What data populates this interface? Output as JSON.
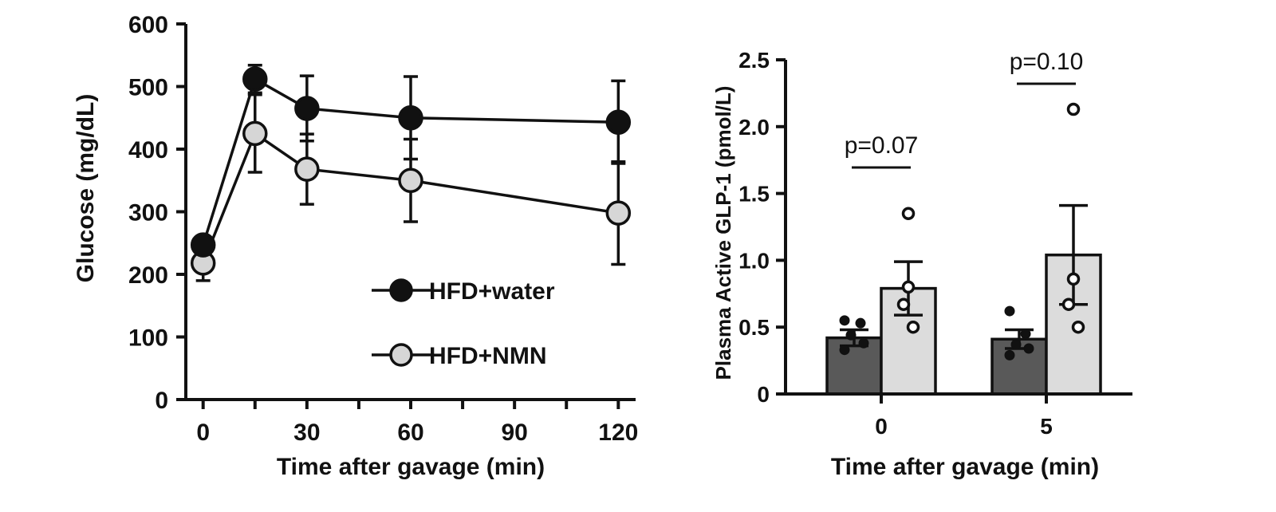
{
  "colors": {
    "axis": "#111111",
    "hfd_water": "#111111",
    "hfd_nmn_fill": "#d6d6d6",
    "bar_water": "#595959",
    "bar_nmn": "#dcdcdc"
  },
  "chart_data": [
    {
      "type": "line",
      "title": "",
      "xlabel": "Time after gavage (min)",
      "ylabel": "Glucose (mg/dL)",
      "xlim": [
        -5,
        125
      ],
      "ylim": [
        0,
        600
      ],
      "x_ticks": [
        0,
        15,
        30,
        45,
        60,
        75,
        90,
        105,
        120
      ],
      "x_tick_labels": [
        "0",
        "",
        "30",
        "",
        "60",
        "",
        "90",
        "",
        "120"
      ],
      "y_ticks": [
        0,
        100,
        200,
        300,
        400,
        500,
        600
      ],
      "y_tick_labels": [
        "0",
        "100",
        "200",
        "300",
        "400",
        "500",
        "600"
      ],
      "legend_position": "lower-right",
      "series": [
        {
          "name": "HFD+water",
          "marker": "filled-circle",
          "x": [
            0,
            15,
            30,
            60,
            120
          ],
          "y": [
            247,
            512,
            465,
            450,
            443
          ],
          "err": [
            0,
            22,
            52,
            66,
            66
          ]
        },
        {
          "name": "HFD+NMN",
          "marker": "open-circle",
          "x": [
            0,
            15,
            30,
            60,
            120
          ],
          "y": [
            218,
            425,
            368,
            350,
            298
          ],
          "err": [
            28,
            62,
            56,
            66,
            82
          ]
        }
      ]
    },
    {
      "type": "bar",
      "title": "",
      "xlabel": "Time after gavage (min)",
      "ylabel": "Plasma Active GLP-1 (pmol/L)",
      "ylim": [
        0,
        2.5
      ],
      "y_ticks": [
        0,
        0.5,
        1.0,
        1.5,
        2.0,
        2.5
      ],
      "y_tick_labels": [
        "0",
        "0.5",
        "1.0",
        "1.5",
        "2.0",
        "2.5"
      ],
      "categories": [
        "0",
        "5"
      ],
      "series": [
        {
          "group": "HFD+water",
          "values": [
            0.42,
            0.41
          ],
          "sem": [
            0.06,
            0.07
          ],
          "points": [
            [
              0.55,
              0.53,
              0.44,
              0.38,
              0.33
            ],
            [
              0.62,
              0.45,
              0.37,
              0.34,
              0.29
            ]
          ]
        },
        {
          "group": "HFD+NMN",
          "values": [
            0.79,
            1.04
          ],
          "sem": [
            0.2,
            0.37
          ],
          "points": [
            [
              1.35,
              0.8,
              0.67,
              0.5
            ],
            [
              2.13,
              0.86,
              0.67,
              0.5
            ]
          ]
        }
      ],
      "annotations": [
        {
          "category": "0",
          "text": "p=0.07"
        },
        {
          "category": "5",
          "text": "p=0.10"
        }
      ]
    }
  ]
}
